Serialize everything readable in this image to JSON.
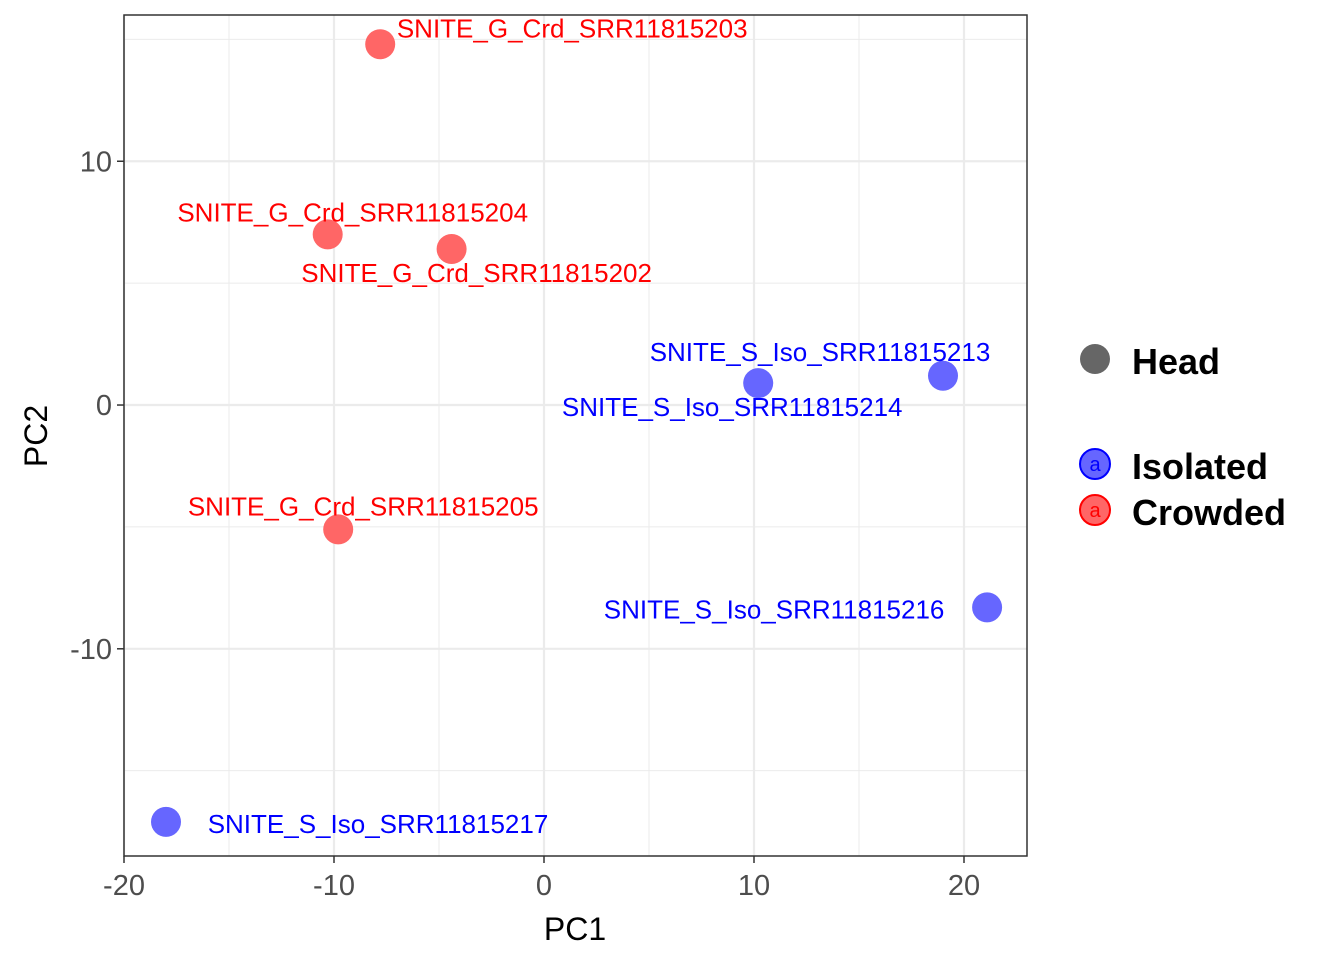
{
  "chart_data": {
    "type": "scatter",
    "xlabel": "PC1",
    "ylabel": "PC2",
    "xlim": [
      -20,
      23
    ],
    "ylim": [
      -18.5,
      16
    ],
    "x_ticks": [
      -20,
      -10,
      0,
      10,
      20
    ],
    "y_ticks": [
      -10,
      0,
      10
    ],
    "x_tick_labels": [
      "-20",
      "-10",
      "0",
      "10",
      "20"
    ],
    "y_tick_labels": [
      "-10",
      "0",
      "10"
    ],
    "grid": true,
    "legend_position": "right",
    "shape_legend": [
      {
        "label": "Head",
        "color": "#666666"
      }
    ],
    "color_legend": [
      {
        "label": "Isolated",
        "color": "#0000FF",
        "key_glyph": "a"
      },
      {
        "label": "Crowded",
        "color": "#FF0000",
        "key_glyph": "a"
      }
    ],
    "point_colors": {
      "Isolated": "#6666FF",
      "Crowded": "#FF6666"
    },
    "label_colors": {
      "Isolated": "#0000FF",
      "Crowded": "#FF0000"
    },
    "points": [
      {
        "label": "SNITE_G_Crd_SRR11815203",
        "group": "Crowded",
        "x": -7.8,
        "y": 14.8
      },
      {
        "label": "SNITE_G_Crd_SRR11815204",
        "group": "Crowded",
        "x": -10.3,
        "y": 7.0
      },
      {
        "label": "SNITE_G_Crd_SRR11815202",
        "group": "Crowded",
        "x": -4.4,
        "y": 6.4
      },
      {
        "label": "SNITE_G_Crd_SRR11815205",
        "group": "Crowded",
        "x": -9.8,
        "y": -5.1
      },
      {
        "label": "SNITE_S_Iso_SRR11815213",
        "group": "Isolated",
        "x": 19.0,
        "y": 1.2
      },
      {
        "label": "SNITE_S_Iso_SRR11815214",
        "group": "Isolated",
        "x": 10.2,
        "y": 0.9
      },
      {
        "label": "SNITE_S_Iso_SRR11815216",
        "group": "Isolated",
        "x": 21.1,
        "y": -8.3
      },
      {
        "label": "SNITE_S_Iso_SRR11815217",
        "group": "Isolated",
        "x": -18.0,
        "y": -17.1
      }
    ]
  }
}
